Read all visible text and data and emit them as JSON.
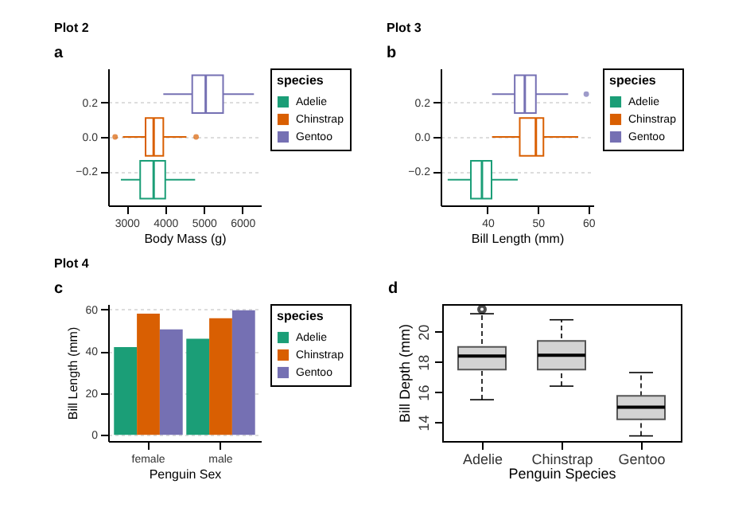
{
  "chart_data": [
    {
      "type": "box",
      "orientation": "horizontal",
      "title": "Plot 2",
      "annotations": [
        "a"
      ],
      "xlabel": "Body Mass (g)",
      "xlim": [
        2520,
        6480
      ],
      "xticks": [
        3000,
        4000,
        5000,
        6000
      ],
      "ylim": [
        -0.4,
        0.4
      ],
      "yticks": [
        -0.2,
        {
          "value": 0,
          "label": "0.0"
        },
        0.2
      ],
      "grid": "y",
      "legend": "right",
      "legend_title": "species",
      "series": [
        {
          "name": "Adelie",
          "color": "#1b9e77",
          "x": [
            -0.25
          ],
          "boxes": [
            {
              "low": 2850,
              "q1": 3350,
              "median": 3700,
              "q3": 4000,
              "high": 4775
            }
          ]
        },
        {
          "name": "Chinstrap",
          "color": "#d95f02",
          "x": [
            0
          ],
          "boxes": [
            {
              "low": 2900,
              "q1": 3490,
              "median": 3700,
              "q3": 3950,
              "high": 4550,
              "outliers": [
                2700,
                4800
              ]
            }
          ]
        },
        {
          "name": "Gentoo",
          "color": "#7570b3",
          "x": [
            0.25
          ],
          "boxes": [
            {
              "low": 3950,
              "q1": 4700,
              "median": 5050,
              "q3": 5500,
              "high": 6300
            }
          ]
        }
      ]
    },
    {
      "type": "box",
      "orientation": "horizontal",
      "title": "Plot 3",
      "annotations": [
        "b"
      ],
      "xlabel": "Bill Length (mm)",
      "xlim": [
        30.7,
        61.0
      ],
      "xticks": [
        40,
        50,
        60
      ],
      "ylim": [
        -0.4,
        0.4
      ],
      "yticks": [
        -0.2,
        {
          "value": 0,
          "label": "0.0"
        },
        0.2
      ],
      "grid": "y",
      "legend": "right",
      "legend_title": "species",
      "series": [
        {
          "name": "Adelie",
          "color": "#1b9e77",
          "x": [
            -0.25
          ],
          "boxes": [
            {
              "low": 32.1,
              "q1": 36.7,
              "median": 38.9,
              "q3": 40.8,
              "high": 46.0
            }
          ]
        },
        {
          "name": "Chinstrap",
          "color": "#d95f02",
          "x": [
            0
          ],
          "boxes": [
            {
              "low": 40.9,
              "q1": 46.4,
              "median": 49.6,
              "q3": 51.1,
              "high": 58.0
            }
          ]
        },
        {
          "name": "Gentoo",
          "color": "#7570b3",
          "x": [
            0.25
          ],
          "boxes": [
            {
              "low": 40.9,
              "q1": 45.4,
              "median": 47.4,
              "q3": 49.6,
              "high": 56.0,
              "outliers": [
                59.6
              ]
            }
          ]
        }
      ]
    },
    {
      "type": "bar",
      "title": "Plot 4",
      "annotations": [
        "c"
      ],
      "xlabel": "Penguin Sex",
      "ylabel": "Bill Length (mm)",
      "categories": [
        "female",
        "male"
      ],
      "ylim": [
        -3.0,
        62.6
      ],
      "yticks": [
        0,
        20,
        40,
        60
      ],
      "grid": "y",
      "legend": "right",
      "legend_title": "species",
      "series": [
        {
          "name": "Adelie",
          "color": "#1b9e77",
          "values": [
            42.0,
            46.0
          ]
        },
        {
          "name": "Chinstrap",
          "color": "#d95f02",
          "values": [
            58.0,
            55.8
          ]
        },
        {
          "name": "Gentoo",
          "color": "#7570b3",
          "values": [
            50.5,
            59.6
          ]
        }
      ]
    },
    {
      "type": "box",
      "annotations": [
        "d"
      ],
      "xlabel": "Penguin Species",
      "ylabel": "Bill Depth (mm)",
      "categories": [
        "Adelie",
        "Chinstrap",
        "Gentoo"
      ],
      "ylim": [
        12.76,
        21.84
      ],
      "yticks": [
        14,
        16,
        18,
        20
      ],
      "line_style": "dashed",
      "marker": "circle",
      "grid": false,
      "legend": false,
      "series": [
        {
          "color": "#d3d3d3",
          "boxes": [
            {
              "low": 15.5,
              "q1": 17.5,
              "median": 18.4,
              "q3": 19.0,
              "high": 21.2,
              "outliers": [
                21.5
              ]
            },
            {
              "low": 16.4,
              "q1": 17.5,
              "median": 18.45,
              "q3": 19.4,
              "high": 20.8
            },
            {
              "low": 13.1,
              "q1": 14.2,
              "median": 15.0,
              "q3": 15.75,
              "high": 17.3
            }
          ]
        }
      ]
    }
  ]
}
